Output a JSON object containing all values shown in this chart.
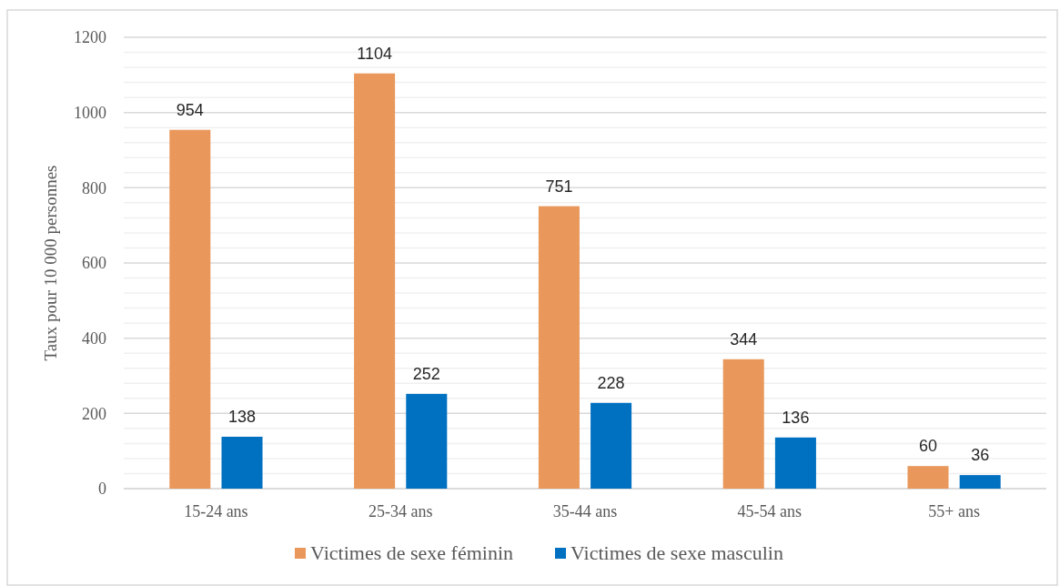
{
  "chart_data": {
    "type": "bar",
    "ylabel": "Taux pour 10 000 personnes",
    "categories": [
      "15-24 ans",
      "25-34 ans",
      "35-44 ans",
      "45-54 ans",
      "55+ ans"
    ],
    "series": [
      {
        "name": "Victimes de sexe féminin",
        "color": "#e9975a",
        "values": [
          954,
          1104,
          751,
          344,
          60
        ]
      },
      {
        "name": "Victimes de sexe masculin",
        "color": "#0070c0",
        "values": [
          138,
          252,
          228,
          136,
          36
        ]
      }
    ],
    "ylim": [
      0,
      1200
    ],
    "yticks": [
      0,
      {
        "value": 40,
        "label": null
      },
      {
        "value": 80,
        "label": null
      },
      {
        "value": 120,
        "label": null
      },
      {
        "value": 160,
        "label": null
      },
      200,
      {
        "value": 240,
        "label": null
      },
      {
        "value": 280,
        "label": null
      },
      {
        "value": 320,
        "label": null
      },
      {
        "value": 360,
        "label": null
      },
      400,
      {
        "value": 440,
        "label": null
      },
      {
        "value": 480,
        "label": null
      },
      {
        "value": 520,
        "label": null
      },
      {
        "value": 560,
        "label": null
      },
      600,
      {
        "value": 640,
        "label": null
      },
      {
        "value": 680,
        "label": null
      },
      {
        "value": 720,
        "label": null
      },
      {
        "value": 760,
        "label": null
      },
      800,
      {
        "value": 840,
        "label": null
      },
      {
        "value": 880,
        "label": null
      },
      {
        "value": 920,
        "label": null
      },
      {
        "value": 960,
        "label": null
      },
      1000,
      {
        "value": 1040,
        "label": null
      },
      {
        "value": 1080,
        "label": null
      },
      {
        "value": 1120,
        "label": null
      },
      {
        "value": 1160,
        "label": null
      },
      1200
    ],
    "grid": true,
    "legend": "bottom",
    "data_labels": true
  }
}
